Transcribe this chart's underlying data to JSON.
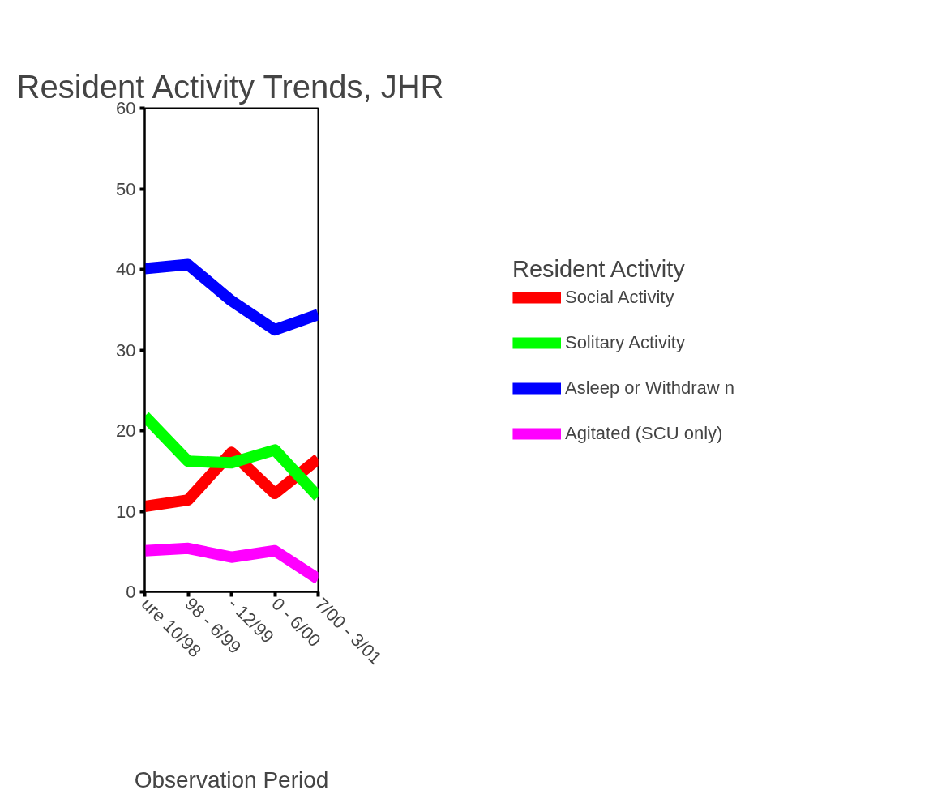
{
  "chart_data": {
    "type": "line",
    "title": "Resident Activity Trends, JHR",
    "xlabel": "Observation Period",
    "legend_title": "Resident Activity",
    "categories": [
      "ure 10/98",
      "98 - 6/99",
      "- 12/99",
      "0 - 6/00",
      "7/00 - 3/01"
    ],
    "ylim": [
      0,
      60
    ],
    "yticks": [
      0,
      10,
      20,
      30,
      40,
      50,
      60
    ],
    "grid": false,
    "legend": "right",
    "marker": "none",
    "line_style": "solid",
    "series": [
      {
        "name": "Social Activity",
        "color": "#ff0000",
        "values": [
          10.6,
          11.4,
          17.3,
          12.2,
          16.5
        ]
      },
      {
        "name": "Solitary Activity",
        "color": "#00ff00",
        "values": [
          21.8,
          16.2,
          16,
          17.6,
          11.8
        ]
      },
      {
        "name": "Asleep or Withdraw n",
        "color": "#0000ff",
        "values": [
          40.1,
          40.6,
          36.1,
          32.5,
          34.4
        ]
      },
      {
        "name": "Agitated (SCU only)",
        "color": "#ff00ff",
        "values": [
          5.1,
          5.4,
          4.3,
          5.1,
          1.6
        ]
      }
    ]
  }
}
